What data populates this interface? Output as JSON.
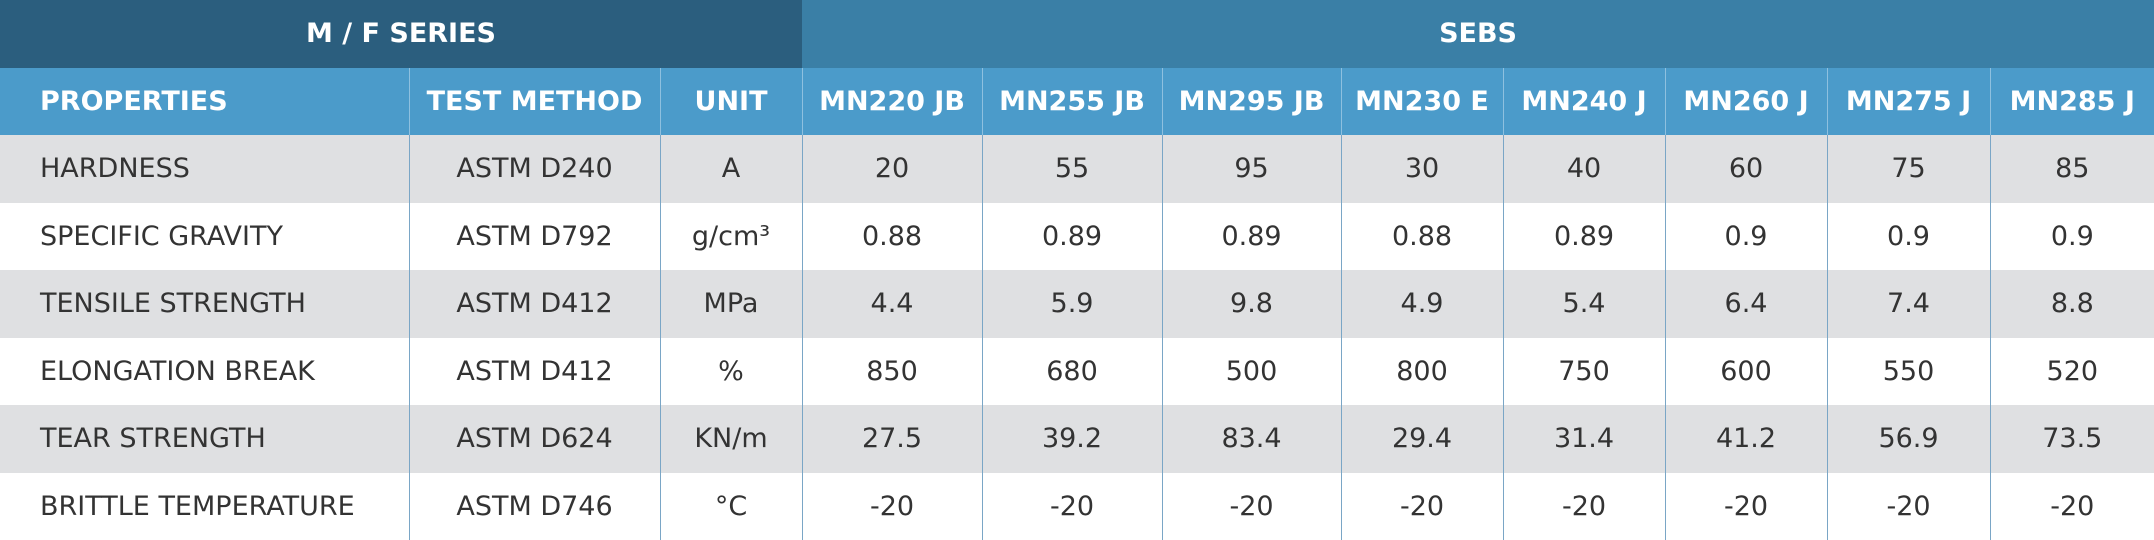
{
  "table": {
    "groups": [
      "M / F SERIES",
      "SEBS"
    ],
    "columns": [
      "PROPERTIES",
      "TEST METHOD",
      "UNIT",
      "MN220 JB",
      "MN255 JB",
      "MN295 JB",
      "MN230 E",
      "MN240 J",
      "MN260 J",
      "MN275 J",
      "MN285 J"
    ],
    "rows": [
      [
        "HARDNESS",
        "ASTM D240",
        "A",
        "20",
        "55",
        "95",
        "30",
        "40",
        "60",
        "75",
        "85"
      ],
      [
        "SPECIFIC GRAVITY",
        "ASTM D792",
        "g/cm³",
        "0.88",
        "0.89",
        "0.89",
        "0.88",
        "0.89",
        "0.9",
        "0.9",
        "0.9"
      ],
      [
        "TENSILE STRENGTH",
        "ASTM D412",
        "MPa",
        "4.4",
        "5.9",
        "9.8",
        "4.9",
        "5.4",
        "6.4",
        "7.4",
        "8.8"
      ],
      [
        "ELONGATION BREAK",
        "ASTM D412",
        "%",
        "850",
        "680",
        "500",
        "800",
        "750",
        "600",
        "550",
        "520"
      ],
      [
        "TEAR STRENGTH",
        "ASTM D624",
        "KN/m",
        "27.5",
        "39.2",
        "83.4",
        "29.4",
        "31.4",
        "41.2",
        "56.9",
        "73.5"
      ],
      [
        "BRITTLE TEMPERATURE",
        "ASTM D746",
        "°C",
        "-20",
        "-20",
        "-20",
        "-20",
        "-20",
        "-20",
        "-20",
        "-20"
      ]
    ]
  }
}
